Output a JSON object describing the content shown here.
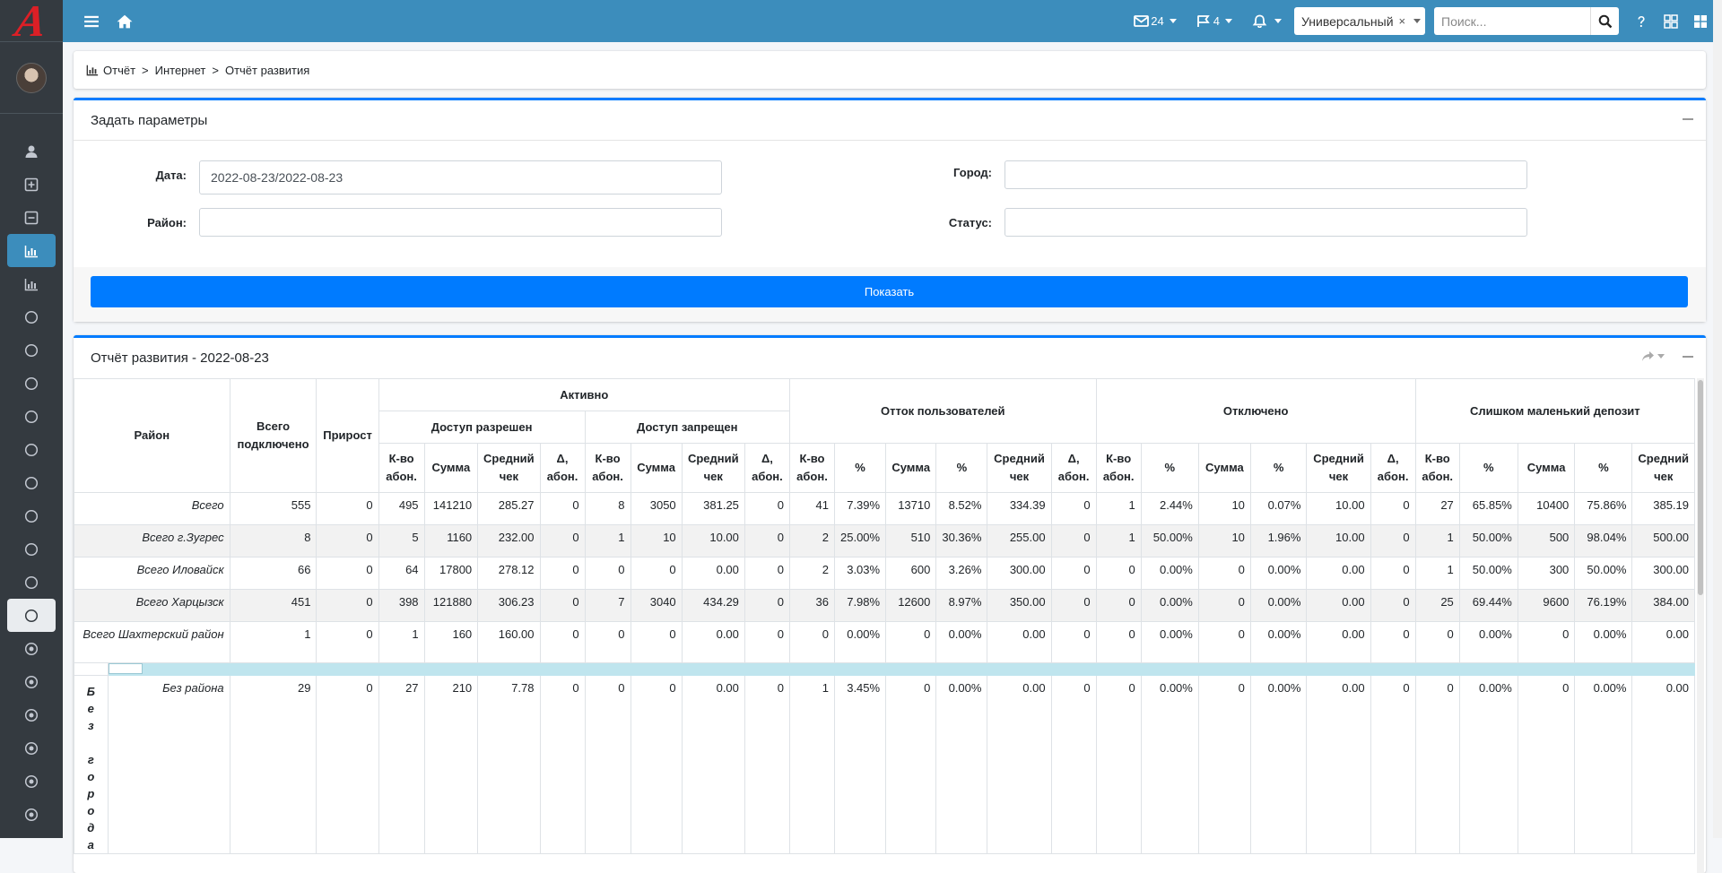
{
  "app": {
    "logo": "A"
  },
  "topbar": {
    "mail_count": "24",
    "flag_count": "4",
    "select_value": "Универсальный",
    "select_clear": "×",
    "search_placeholder": "Поиск..."
  },
  "breadcrumb": [
    "Отчёт",
    "Интернет",
    "Отчёт развития"
  ],
  "breadcrumb_sep": ">",
  "params": {
    "title": "Задать параметры",
    "date_label": "Дата:",
    "date_value": "2022-08-23/2022-08-23",
    "city_label": "Город:",
    "district_label": "Район:",
    "status_label": "Статус:",
    "show_button": "Показать"
  },
  "report": {
    "title": "Отчёт развития - 2022-08-23",
    "headers": {
      "district": "Район",
      "total_connected": "Всего подключено",
      "growth": "Прирост",
      "active": "Активно",
      "access_allowed": "Доступ разрешен",
      "access_denied": "Доступ запрещен",
      "churn": "Отток пользователей",
      "disconnected": "Отключено",
      "small_deposit": "Слишком маленький депозит",
      "count": "К-во абон.",
      "sum": "Сумма",
      "avg": "Средний чек",
      "delta": "Δ, абон.",
      "pct": "%"
    },
    "rows": [
      {
        "name": "Всего",
        "c": [
          "555",
          "0",
          "495",
          "141210",
          "285.27",
          "0",
          "8",
          "3050",
          "381.25",
          "0",
          "41",
          "7.39%",
          "13710",
          "8.52%",
          "334.39",
          "0",
          "1",
          "2.44%",
          "10",
          "0.07%",
          "10.00",
          "0",
          "27",
          "65.85%",
          "10400",
          "75.86%",
          "385.19"
        ]
      },
      {
        "name": "Всего г.Зугрес",
        "c": [
          "8",
          "0",
          "5",
          "1160",
          "232.00",
          "0",
          "1",
          "10",
          "10.00",
          "0",
          "2",
          "25.00%",
          "510",
          "30.36%",
          "255.00",
          "0",
          "1",
          "50.00%",
          "10",
          "1.96%",
          "10.00",
          "0",
          "1",
          "50.00%",
          "500",
          "98.04%",
          "500.00"
        ]
      },
      {
        "name": "Всего Иловайск",
        "c": [
          "66",
          "0",
          "64",
          "17800",
          "278.12",
          "0",
          "0",
          "0",
          "0.00",
          "0",
          "2",
          "3.03%",
          "600",
          "3.26%",
          "300.00",
          "0",
          "0",
          "0.00%",
          "0",
          "0.00%",
          "0.00",
          "0",
          "1",
          "50.00%",
          "300",
          "50.00%",
          "300.00"
        ]
      },
      {
        "name": "Всего Харцызск",
        "c": [
          "451",
          "0",
          "398",
          "121880",
          "306.23",
          "0",
          "7",
          "3040",
          "434.29",
          "0",
          "36",
          "7.98%",
          "12600",
          "8.97%",
          "350.00",
          "0",
          "0",
          "0.00%",
          "0",
          "0.00%",
          "0.00",
          "0",
          "25",
          "69.44%",
          "9600",
          "76.19%",
          "384.00"
        ]
      },
      {
        "name": "Всего Шахтерский район",
        "c": [
          "1",
          "0",
          "1",
          "160",
          "160.00",
          "0",
          "0",
          "0",
          "0.00",
          "0",
          "0",
          "0.00%",
          "0",
          "0.00%",
          "0.00",
          "0",
          "0",
          "0.00%",
          "0",
          "0.00%",
          "0.00",
          "0",
          "0",
          "0.00%",
          "0",
          "0.00%",
          "0.00"
        ]
      }
    ],
    "group_label": "Без города",
    "group_rows": [
      {
        "name": "Без района",
        "c": [
          "29",
          "0",
          "27",
          "210",
          "7.78",
          "0",
          "0",
          "0",
          "0.00",
          "0",
          "1",
          "3.45%",
          "0",
          "0.00%",
          "0.00",
          "0",
          "0",
          "0.00%",
          "0",
          "0.00%",
          "0.00",
          "0",
          "0",
          "0.00%",
          "0",
          "0.00%",
          "0.00"
        ]
      }
    ]
  }
}
